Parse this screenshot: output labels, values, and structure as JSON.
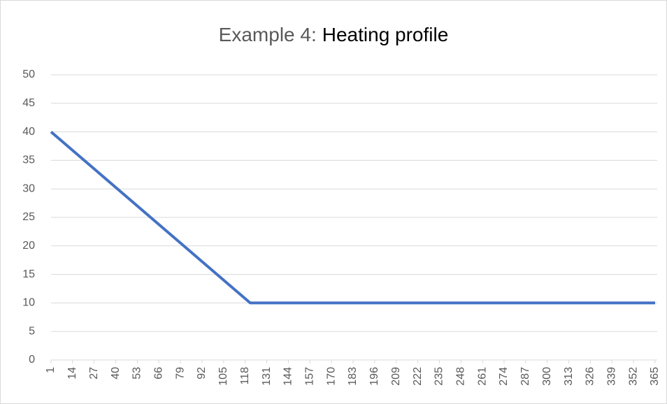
{
  "chart_data": {
    "type": "line",
    "title": [
      "Example 4:",
      "Heating profile"
    ],
    "x": [
      1,
      121,
      365
    ],
    "series": [
      {
        "name": "Heating profile",
        "color": "#4472c4",
        "values": [
          40,
          10,
          10
        ]
      }
    ],
    "xlim": [
      1,
      365
    ],
    "xticks": [
      1,
      14,
      27,
      40,
      53,
      66,
      79,
      92,
      105,
      118,
      131,
      144,
      157,
      170,
      183,
      196,
      209,
      222,
      235,
      248,
      261,
      274,
      287,
      300,
      313,
      326,
      339,
      352,
      365
    ],
    "ylim": [
      0,
      50
    ],
    "yticks": [
      0,
      5,
      10,
      15,
      20,
      25,
      30,
      35,
      40,
      45,
      50
    ],
    "grid": true
  }
}
